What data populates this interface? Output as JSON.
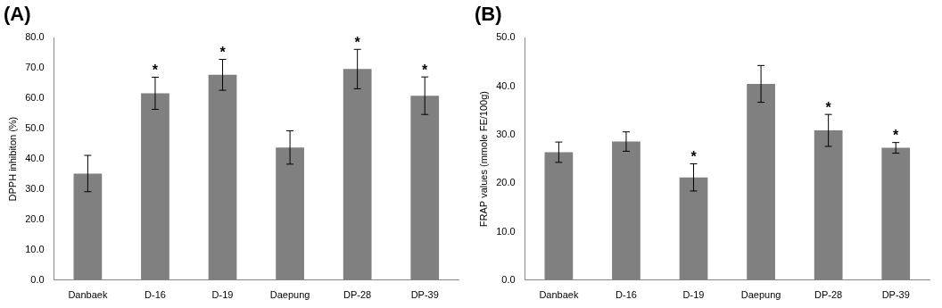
{
  "chart_data": [
    {
      "type": "bar",
      "title": "(A)",
      "y_label": "DPPH inhibiton (%)",
      "categories": [
        "Danbaek",
        "D-16",
        "D-19",
        "Daepung",
        "DP-28",
        "DP-39"
      ],
      "values": [
        35.2,
        61.7,
        67.8,
        43.8,
        69.7,
        60.9
      ],
      "errors": [
        6.0,
        5.3,
        5.1,
        5.5,
        6.5,
        6.2
      ],
      "annotations": [
        null,
        "*",
        "*",
        null,
        "*",
        "*"
      ],
      "color": "#808080",
      "ylim": [
        0,
        80
      ],
      "yticks": [
        {
          "value": 0,
          "label": "0.0"
        },
        {
          "value": 10,
          "label": "10.0"
        },
        {
          "value": 20,
          "label": "20.0"
        },
        {
          "value": 30,
          "label": "30.0"
        },
        {
          "value": 40,
          "label": "40.0"
        },
        {
          "value": 50,
          "label": "50.0"
        },
        {
          "value": 60,
          "label": "60.0"
        },
        {
          "value": 70,
          "label": "70.0"
        },
        {
          "value": 80,
          "label": "80.0"
        }
      ],
      "grid": false
    },
    {
      "type": "bar",
      "title": "(B)",
      "y_label": "FRAP values (mmole FE/100g)",
      "categories": [
        "Danbaek",
        "D-16",
        "D-19",
        "Daepung",
        "DP-28",
        "DP-39"
      ],
      "values": [
        26.4,
        28.6,
        21.2,
        40.5,
        30.9,
        27.3
      ],
      "errors": [
        2.1,
        2.0,
        2.8,
        3.8,
        3.3,
        1.1
      ],
      "annotations": [
        null,
        null,
        "*",
        null,
        "*",
        "*"
      ],
      "color": "#808080",
      "ylim": [
        0,
        50
      ],
      "yticks": [
        {
          "value": 0,
          "label": "0.0"
        },
        {
          "value": 10,
          "label": "10.0"
        },
        {
          "value": 20,
          "label": "20.0"
        },
        {
          "value": 30,
          "label": "30.0"
        },
        {
          "value": 40,
          "label": "40.0"
        },
        {
          "value": 50,
          "label": "50.0"
        }
      ],
      "grid": false
    }
  ]
}
